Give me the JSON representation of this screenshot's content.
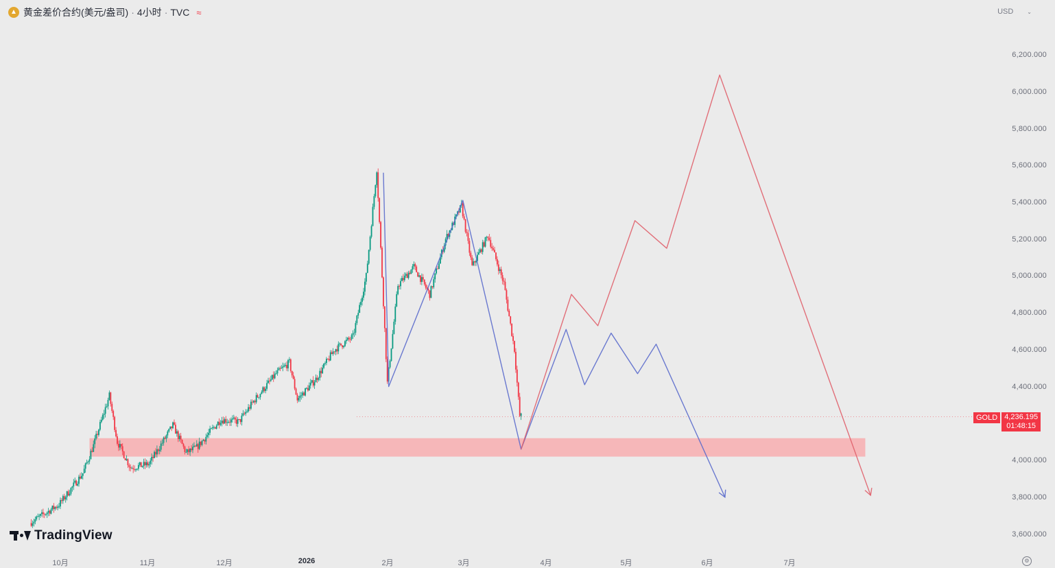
{
  "header": {
    "symbol_name": "黄金差价合约(美元/盎司)",
    "separator": "·",
    "interval": "4小时",
    "exchange": "TVC",
    "wave_glyph": "≈",
    "currency": "USD"
  },
  "branding": {
    "logo_text": "TradingView"
  },
  "price_tag": {
    "symbol": "GOLD",
    "price": "4,236.195",
    "countdown": "01:48:15",
    "color": "#f23645"
  },
  "colors": {
    "background": "#ebebeb",
    "up_candle": "#089981",
    "down_candle": "#f23645",
    "support_zone": "#f7b4b6",
    "bullish_path": "#e0616b",
    "bearish_path": "#5b6ccc"
  },
  "price_axis": {
    "labels": [
      "6,200.000",
      "6,000.000",
      "5,800.000",
      "5,600.000",
      "5,400.000",
      "5,200.000",
      "5,000.000",
      "4,800.000",
      "4,600.000",
      "4,400.000",
      "4,000.000",
      "3,800.000",
      "3,600.000"
    ]
  },
  "time_axis": {
    "labels": [
      "10月",
      "11月",
      "12月",
      "2026",
      "2月",
      "3月",
      "4月",
      "5月",
      "6月",
      "7月"
    ]
  },
  "chart_data": {
    "type": "candlestick",
    "title": "黄金差价合约(美元/盎司)",
    "interval": "4小时",
    "currency": "USD",
    "ylim": [
      3550,
      6290
    ],
    "y_ticks": [
      3600,
      3800,
      4000,
      4200,
      4400,
      4600,
      4800,
      5000,
      5200,
      5400,
      5600,
      5800,
      6000,
      6200
    ],
    "x_range": [
      "2025-09-20",
      "2026-08-15"
    ],
    "x_ticks": [
      "2025-10-01",
      "2025-11-01",
      "2025-12-01",
      "2026-01-01",
      "2026-02-01",
      "2026-03-01",
      "2026-04-01",
      "2026-05-01",
      "2026-06-01",
      "2026-07-01"
    ],
    "price_path": [
      {
        "date": "2025-09-20",
        "price": 3660
      },
      {
        "date": "2025-10-01",
        "price": 3760
      },
      {
        "date": "2025-10-10",
        "price": 3930
      },
      {
        "date": "2025-10-14",
        "price": 4080
      },
      {
        "date": "2025-10-20",
        "price": 4350
      },
      {
        "date": "2025-10-23",
        "price": 4100
      },
      {
        "date": "2025-10-28",
        "price": 3960
      },
      {
        "date": "2025-11-04",
        "price": 3980
      },
      {
        "date": "2025-11-13",
        "price": 4190
      },
      {
        "date": "2025-11-18",
        "price": 4040
      },
      {
        "date": "2025-11-22",
        "price": 4070
      },
      {
        "date": "2025-12-01",
        "price": 4220
      },
      {
        "date": "2025-12-08",
        "price": 4210
      },
      {
        "date": "2025-12-14",
        "price": 4330
      },
      {
        "date": "2025-12-22",
        "price": 4470
      },
      {
        "date": "2025-12-27",
        "price": 4530
      },
      {
        "date": "2025-12-30",
        "price": 4330
      },
      {
        "date": "2026-01-06",
        "price": 4440
      },
      {
        "date": "2026-01-13",
        "price": 4600
      },
      {
        "date": "2026-01-20",
        "price": 4670
      },
      {
        "date": "2026-01-25",
        "price": 5000
      },
      {
        "date": "2026-01-29",
        "price": 5580
      },
      {
        "date": "2026-02-02",
        "price": 4420
      },
      {
        "date": "2026-02-06",
        "price": 4950
      },
      {
        "date": "2026-02-12",
        "price": 5050
      },
      {
        "date": "2026-02-18",
        "price": 4900
      },
      {
        "date": "2026-02-24",
        "price": 5200
      },
      {
        "date": "2026-03-02",
        "price": 5380
      },
      {
        "date": "2026-03-06",
        "price": 5050
      },
      {
        "date": "2026-03-12",
        "price": 5220
      },
      {
        "date": "2026-03-18",
        "price": 4960
      },
      {
        "date": "2026-03-22",
        "price": 4600
      },
      {
        "date": "2026-03-24",
        "price": 4240
      }
    ],
    "support_zone": {
      "from_date": "2025-10-12",
      "to_date": "2026-08-01",
      "low": 4020,
      "high": 4120
    },
    "current_price": 4236.195,
    "projections": [
      {
        "points": [
          {
            "date": "2026-03-24",
            "price": 4060
          },
          {
            "date": "2026-04-12",
            "price": 4900
          },
          {
            "date": "2026-04-22",
            "price": 4730
          },
          {
            "date": "2026-05-06",
            "price": 5300
          },
          {
            "date": "2026-05-18",
            "price": 5150
          },
          {
            "date": "2026-06-07",
            "price": 6090
          },
          {
            "date": "2026-08-03",
            "price": 3810
          }
        ]
      },
      {
        "points": [
          {
            "date": "2026-01-31",
            "price": 5560
          },
          {
            "date": "2026-02-02",
            "price": 4400
          },
          {
            "date": "2026-03-02",
            "price": 5410
          },
          {
            "date": "2026-03-24",
            "price": 4060
          },
          {
            "date": "2026-04-10",
            "price": 4710
          },
          {
            "date": "2026-04-17",
            "price": 4410
          },
          {
            "date": "2026-04-27",
            "price": 4690
          },
          {
            "date": "2026-05-07",
            "price": 4470
          },
          {
            "date": "2026-05-14",
            "price": 4630
          },
          {
            "date": "2026-06-09",
            "price": 3800
          }
        ]
      }
    ]
  }
}
